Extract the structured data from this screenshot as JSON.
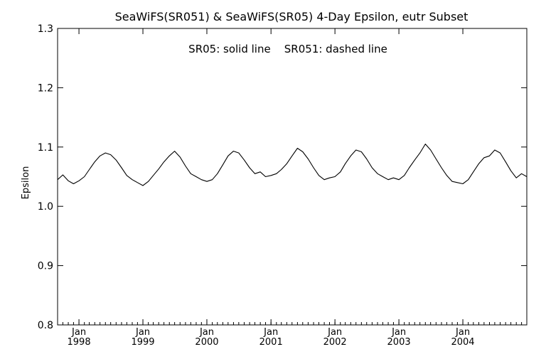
{
  "chart_data": {
    "type": "line",
    "title": "SeaWiFS(SR051) & SeaWiFS(SR05) 4-Day Epsilon, eutr Subset",
    "annotation": "SR05: solid line    SR051: dashed line",
    "xlabel": "",
    "ylabel": "Epsilon",
    "ylim": [
      0.8,
      1.3
    ],
    "yticks": [
      "0.8",
      "0.9",
      "1.0",
      "1.1",
      "1.2",
      "1.3"
    ],
    "xlim": [
      "1997-09-01",
      "2004-12-31"
    ],
    "xticks": [
      {
        "month": "Jan",
        "year": "1998",
        "date": "1998-01-01"
      },
      {
        "month": "Jan",
        "year": "1999",
        "date": "1999-01-01"
      },
      {
        "month": "Jan",
        "year": "2000",
        "date": "2000-01-01"
      },
      {
        "month": "Jan",
        "year": "2001",
        "date": "2001-01-01"
      },
      {
        "month": "Jan",
        "year": "2002",
        "date": "2002-01-01"
      },
      {
        "month": "Jan",
        "year": "2003",
        "date": "2003-01-01"
      },
      {
        "month": "Jan",
        "year": "2004",
        "date": "2004-01-01"
      }
    ],
    "grid": false,
    "legend": "none",
    "series": [
      {
        "style": "solid",
        "color": "#000000",
        "x": [
          "1997-09-01",
          "1997-10-01",
          "1997-11-01",
          "1997-12-01",
          "1998-01-01",
          "1998-02-01",
          "1998-03-01",
          "1998-04-01",
          "1998-05-01",
          "1998-06-01",
          "1998-07-01",
          "1998-08-01",
          "1998-09-01",
          "1998-10-01",
          "1998-11-01",
          "1998-12-01",
          "1999-01-01",
          "1999-02-01",
          "1999-03-01",
          "1999-04-01",
          "1999-05-01",
          "1999-06-01",
          "1999-07-01",
          "1999-08-01",
          "1999-09-01",
          "1999-10-01",
          "1999-11-01",
          "1999-12-01",
          "2000-01-01",
          "2000-02-01",
          "2000-03-01",
          "2000-04-01",
          "2000-05-01",
          "2000-06-01",
          "2000-07-01",
          "2000-08-01",
          "2000-09-01",
          "2000-10-01",
          "2000-11-01",
          "2000-12-01",
          "2001-01-01",
          "2001-02-01",
          "2001-03-01",
          "2001-04-01",
          "2001-05-01",
          "2001-06-01",
          "2001-07-01",
          "2001-08-01",
          "2001-09-01",
          "2001-10-01",
          "2001-11-01",
          "2001-12-01",
          "2002-01-01",
          "2002-02-01",
          "2002-03-01",
          "2002-04-01",
          "2002-05-01",
          "2002-06-01",
          "2002-07-01",
          "2002-08-01",
          "2002-09-01",
          "2002-10-01",
          "2002-11-01",
          "2002-12-01",
          "2003-01-01",
          "2003-02-01",
          "2003-03-01",
          "2003-04-01",
          "2003-05-01",
          "2003-06-01",
          "2003-07-01",
          "2003-08-01",
          "2003-09-01",
          "2003-10-01",
          "2003-11-01",
          "2003-12-01",
          "2004-01-01",
          "2004-02-01",
          "2004-03-01",
          "2004-04-01",
          "2004-05-01",
          "2004-06-01",
          "2004-07-01",
          "2004-08-01",
          "2004-09-01",
          "2004-10-01",
          "2004-11-01",
          "2004-12-01",
          "2004-12-31"
        ],
        "values": [
          1.045,
          1.053,
          1.043,
          1.038,
          1.043,
          1.05,
          1.062,
          1.075,
          1.085,
          1.09,
          1.087,
          1.078,
          1.065,
          1.052,
          1.045,
          1.04,
          1.035,
          1.042,
          1.052,
          1.063,
          1.075,
          1.085,
          1.093,
          1.083,
          1.068,
          1.055,
          1.05,
          1.045,
          1.042,
          1.045,
          1.055,
          1.07,
          1.085,
          1.093,
          1.09,
          1.078,
          1.065,
          1.055,
          1.058,
          1.05,
          1.052,
          1.055,
          1.062,
          1.072,
          1.085,
          1.098,
          1.092,
          1.08,
          1.065,
          1.052,
          1.045,
          1.048,
          1.05,
          1.058,
          1.072,
          1.085,
          1.095,
          1.092,
          1.08,
          1.065,
          1.055,
          1.05,
          1.045,
          1.048,
          1.045,
          1.052,
          1.065,
          1.078,
          1.09,
          1.105,
          1.095,
          1.08,
          1.065,
          1.052,
          1.042,
          1.04,
          1.038,
          1.045,
          1.058,
          1.072,
          1.082,
          1.085,
          1.095,
          1.09,
          1.075,
          1.06,
          1.048,
          1.055,
          1.05
        ]
      }
    ]
  }
}
